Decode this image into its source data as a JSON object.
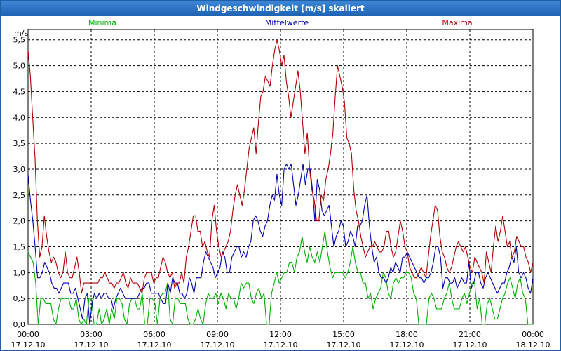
{
  "window": {
    "title": "Windgeschwindigkeit [m/s] skaliert"
  },
  "chart_data": {
    "type": "line",
    "title": "Windgeschwindigkeit [m/s] skaliert",
    "ylabel": "m/s",
    "ylim": [
      0,
      5.7
    ],
    "yticks": [
      "0,0",
      "0,5",
      "1,0",
      "1,5",
      "2,0",
      "2,5",
      "3,0",
      "3,5",
      "4,0",
      "4,5",
      "5,0",
      "5,5"
    ],
    "xticks": [
      {
        "time": "00:00",
        "date": "17.12.10"
      },
      {
        "time": "03:00",
        "date": "17.12.10"
      },
      {
        "time": "06:00",
        "date": "17.12.10"
      },
      {
        "time": "09:00",
        "date": "17.12.10"
      },
      {
        "time": "12:00",
        "date": "17.12.10"
      },
      {
        "time": "15:00",
        "date": "17.12.10"
      },
      {
        "time": "18:00",
        "date": "17.12.10"
      },
      {
        "time": "21:00",
        "date": "17.12.10"
      },
      {
        "time": "00:00",
        "date": "18.12.10"
      }
    ],
    "xlim_hours": [
      0,
      24
    ],
    "grid": true,
    "legend_position": "top",
    "series": [
      {
        "name": "Minima",
        "color": "#00b000",
        "values": [
          1.4,
          1.3,
          1.2,
          0.8,
          0.0,
          0.5,
          0.5,
          0.4,
          0.4,
          0.4,
          0.1,
          0.0,
          0.3,
          0.5,
          0.5,
          0.5,
          0.5,
          0.3,
          0.3,
          0.5,
          0.1,
          0.0,
          0.1,
          0.0,
          0.5,
          0.5,
          0.0,
          0.0,
          0.3,
          0.0,
          0.1,
          0.3,
          0.0,
          0.3,
          0.1,
          0.5,
          0.5,
          0.4,
          0.1,
          0.0,
          0.4,
          0.5,
          0.5,
          0.3,
          0.3,
          0.6,
          0.0,
          0.0,
          0.5,
          0.5,
          0.4,
          0.0,
          0.5,
          0.6,
          0.6,
          0.8,
          0.1,
          0.0,
          0.5,
          0.5,
          0.4,
          0.4,
          0.4,
          0.1,
          0.0,
          0.0,
          0.1,
          0.3,
          0.1,
          0.0,
          0.4,
          0.6,
          0.5,
          0.5,
          0.6,
          0.4,
          0.6,
          0.5,
          0.3,
          0.6,
          0.5,
          0.5,
          0.3,
          0.5,
          0.8,
          0.7,
          0.8,
          0.8,
          0.5,
          0.4,
          0.6,
          0.7,
          0.5,
          0.6,
          0.0,
          0.0,
          0.6,
          0.8,
          1.0,
          0.8,
          0.9,
          1.0,
          1.0,
          1.2,
          1.2,
          1.0,
          1.3,
          1.4,
          1.7,
          1.4,
          1.2,
          1.5,
          1.3,
          1.2,
          1.4,
          1.2,
          1.5,
          1.8,
          1.4,
          1.1,
          0.9,
          1.0,
          1.0,
          1.0,
          1.0,
          0.9,
          1.0,
          1.2,
          1.5,
          1.2,
          1.0,
          1.0,
          0.8,
          0.8,
          0.5,
          0.6,
          0.3,
          0.5,
          0.6,
          0.7,
          1.0,
          0.9,
          0.6,
          0.5,
          0.8,
          0.9,
          0.8,
          0.9,
          0.9,
          1.0,
          1.0,
          0.9,
          0.6,
          0.5,
          0.0,
          0.0,
          0.0,
          0.0,
          0.5,
          0.6,
          0.5,
          0.3,
          0.3,
          0.3,
          0.5,
          0.6,
          0.8,
          0.5,
          0.3,
          0.3,
          0.3,
          0.5,
          0.6,
          0.4,
          0.6,
          0.8,
          0.8,
          0.3,
          0.5,
          0.0,
          0.0,
          0.4,
          0.5,
          0.3,
          0.1,
          0.1,
          0.3,
          0.5,
          0.6,
          0.8,
          0.9,
          0.7,
          0.5,
          0.8,
          0.9,
          0.6,
          0.5,
          0.0,
          0.0,
          0.0
        ]
      },
      {
        "name": "Mittelwerte",
        "color": "#0000b0",
        "values": [
          2.9,
          2.4,
          2.0,
          1.5,
          0.9,
          0.9,
          1.0,
          1.2,
          1.1,
          1.0,
          0.8,
          0.7,
          0.7,
          0.6,
          0.7,
          0.8,
          0.8,
          0.8,
          0.6,
          0.6,
          0.7,
          0.5,
          0.3,
          0.1,
          0.5,
          0.6,
          0.0,
          0.4,
          0.6,
          0.5,
          0.6,
          0.5,
          0.6,
          0.6,
          0.5,
          0.5,
          0.3,
          0.5,
          0.6,
          0.7,
          0.6,
          0.5,
          0.5,
          0.5,
          0.5,
          0.5,
          0.5,
          0.6,
          0.7,
          0.7,
          0.8,
          0.8,
          0.6,
          0.6,
          0.6,
          0.6,
          0.5,
          0.4,
          0.4,
          0.8,
          0.6,
          0.9,
          0.8,
          0.8,
          0.6,
          0.6,
          0.5,
          0.6,
          0.9,
          0.8,
          0.6,
          0.9,
          0.9,
          0.9,
          1.2,
          1.4,
          1.3,
          1.2,
          1.1,
          0.9,
          1.0,
          1.1,
          1.4,
          1.3,
          1.0,
          1.0,
          1.3,
          1.4,
          1.5,
          1.5,
          1.3,
          1.4,
          1.3,
          1.5,
          1.6,
          2.0,
          2.1,
          2.0,
          1.8,
          1.7,
          1.9,
          2.0,
          2.3,
          2.5,
          2.4,
          2.9,
          2.5,
          2.3,
          3.0,
          3.1,
          3.0,
          3.1,
          2.7,
          2.3,
          2.5,
          2.8,
          3.1,
          2.7,
          3.0,
          3.0,
          2.6,
          2.0,
          2.8,
          2.6,
          2.2,
          2.1,
          2.2,
          2.3,
          1.9,
          1.5,
          1.7,
          1.8,
          2.0,
          1.9,
          1.5,
          1.6,
          1.8,
          1.7,
          1.5,
          1.9,
          1.9,
          2.0,
          2.3,
          2.5,
          1.9,
          1.5,
          1.2,
          1.3,
          1.0,
          0.9,
          0.9,
          0.8,
          0.9,
          1.1,
          1.0,
          1.2,
          1.1,
          1.0,
          1.3,
          1.3,
          1.4,
          1.3,
          1.2,
          1.1,
          1.0,
          0.9,
          0.9,
          0.8,
          0.9,
          0.9,
          1.0,
          1.2,
          1.5,
          1.5,
          1.3,
          0.7,
          0.9,
          0.9,
          0.8,
          0.8,
          0.9,
          0.7,
          0.8,
          0.9,
          0.8,
          0.8,
          1.2,
          0.7,
          0.8,
          1.0,
          1.0,
          0.8,
          0.7,
          0.9,
          1.0,
          0.9,
          0.8,
          0.7,
          0.6,
          0.7,
          0.8,
          0.8,
          1.0,
          1.1,
          1.3,
          1.2,
          1.5,
          1.0,
          0.9,
          1.0,
          0.9,
          0.7,
          0.6,
          0.9
        ]
      },
      {
        "name": "Maxima",
        "color": "#b00000",
        "values": [
          5.3,
          4.8,
          4.0,
          3.2,
          2.0,
          1.3,
          1.5,
          2.1,
          1.7,
          1.4,
          1.2,
          1.3,
          1.2,
          1.0,
          0.9,
          1.0,
          1.4,
          1.0,
          0.9,
          0.9,
          1.1,
          1.3,
          1.0,
          0.6,
          0.8,
          0.8,
          0.8,
          0.8,
          0.8,
          0.8,
          0.8,
          0.9,
          0.9,
          1.0,
          0.9,
          0.8,
          0.8,
          0.7,
          0.8,
          0.8,
          0.9,
          1.0,
          0.8,
          0.7,
          0.9,
          0.8,
          0.8,
          0.8,
          0.7,
          0.6,
          0.9,
          1.0,
          1.0,
          1.0,
          0.8,
          0.9,
          0.9,
          1.1,
          1.3,
          1.2,
          1.0,
          0.9,
          1.0,
          0.7,
          0.8,
          0.8,
          1.0,
          0.8,
          1.3,
          1.5,
          1.8,
          2.1,
          2.1,
          1.8,
          1.8,
          1.5,
          1.6,
          1.4,
          1.3,
          2.0,
          2.3,
          1.8,
          1.5,
          1.3,
          1.4,
          1.5,
          1.6,
          1.8,
          2.2,
          2.5,
          2.7,
          2.5,
          2.3,
          2.6,
          3.0,
          3.4,
          3.6,
          3.8,
          3.3,
          3.9,
          4.4,
          4.5,
          4.8,
          4.7,
          4.6,
          5.0,
          5.3,
          5.5,
          5.3,
          5.0,
          5.2,
          4.7,
          4.4,
          4.0,
          4.3,
          4.6,
          4.9,
          4.5,
          3.9,
          3.3,
          3.7,
          3.0,
          2.6,
          2.4,
          2.0,
          2.0,
          2.5,
          2.4,
          2.8,
          3.0,
          3.3,
          3.7,
          4.4,
          5.0,
          4.8,
          4.6,
          4.3,
          3.6,
          3.5,
          3.3,
          2.6,
          2.2,
          2.0,
          1.7,
          1.5,
          1.3,
          1.4,
          1.5,
          1.5,
          1.6,
          1.5,
          1.4,
          1.4,
          1.5,
          1.8,
          1.8,
          1.5,
          1.3,
          1.4,
          1.7,
          2.0,
          1.8,
          1.5,
          1.4,
          1.1,
          1.0,
          0.9,
          0.9,
          1.0,
          1.1,
          1.0,
          0.9,
          1.3,
          1.7,
          2.0,
          2.3,
          2.2,
          1.7,
          1.4,
          1.3,
          1.1,
          1.0,
          1.1,
          1.3,
          1.5,
          1.6,
          1.5,
          1.4,
          1.5,
          1.3,
          1.1,
          1.0,
          1.3,
          1.2,
          1.1,
          1.0,
          0.8,
          1.4,
          1.2,
          1.0,
          1.5,
          1.9,
          1.6,
          1.8,
          2.1,
          1.8,
          1.5,
          1.6,
          1.3,
          1.4,
          1.7,
          1.6,
          1.5,
          1.5,
          1.3,
          1.2,
          1.0,
          1.2
        ]
      }
    ]
  }
}
